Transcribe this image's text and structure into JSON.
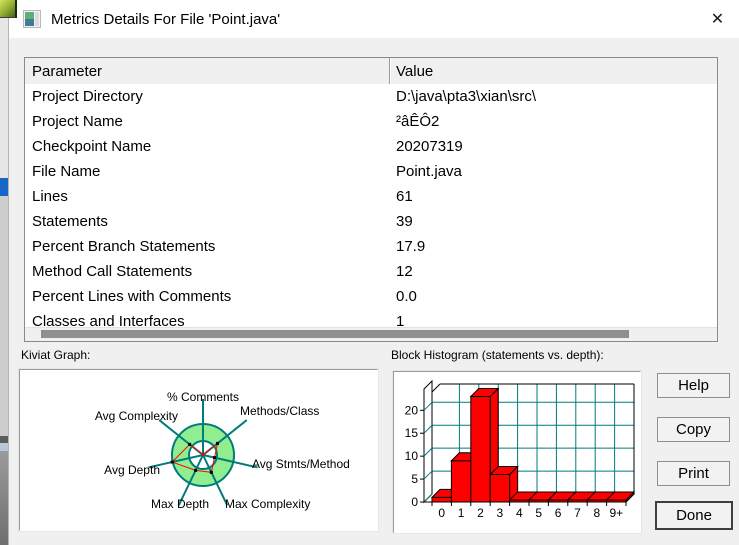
{
  "window": {
    "title": "Metrics Details For File 'Point.java'",
    "close_glyph": "✕"
  },
  "table": {
    "headers": [
      "Parameter",
      "Value"
    ],
    "rows": [
      [
        "Project Directory",
        "D:\\java\\pta3\\xian\\src\\"
      ],
      [
        "Project Name",
        "²âÊÔ2"
      ],
      [
        "Checkpoint Name",
        "20207319"
      ],
      [
        "File Name",
        "Point.java"
      ],
      [
        "Lines",
        "61"
      ],
      [
        "Statements",
        "39"
      ],
      [
        "Percent Branch Statements",
        "17.9"
      ],
      [
        "Method Call Statements",
        "12"
      ],
      [
        "Percent Lines with Comments",
        "0.0"
      ],
      [
        "Classes and Interfaces",
        "1"
      ]
    ]
  },
  "chart_data": [
    {
      "type": "bar",
      "title": "Block Histogram (statements vs. depth):",
      "categories": [
        "0",
        "1",
        "2",
        "3",
        "4",
        "5",
        "6",
        "7",
        "8",
        "9+"
      ],
      "values": [
        1,
        9,
        23,
        6,
        0,
        0,
        0,
        0,
        0,
        0
      ],
      "xlabel": "",
      "ylabel": "",
      "ylim": [
        0,
        24
      ],
      "yticks": [
        0,
        5,
        10,
        15,
        20
      ],
      "grid": true,
      "bar_color": "#ff0000",
      "grid_color": "#007b7b",
      "outline_color": "#000000"
    },
    {
      "type": "radar",
      "title": "Kiviat Graph:",
      "axes": [
        "% Comments",
        "Methods/Class",
        "Avg Stmts/Method",
        "Max Complexity",
        "Max Depth",
        "Avg Depth",
        "Avg Complexity"
      ],
      "values_normalized": [
        0.02,
        0.6,
        0.38,
        0.62,
        0.55,
        1.02,
        0.55
      ],
      "ring_inner_ratio": 0.45,
      "ring_color": "#90ee90",
      "spoke_color": "#007b7b",
      "line_color": "#ff0000",
      "marker_color": "#000000"
    }
  ],
  "buttons": [
    {
      "label": "Help"
    },
    {
      "label": "Copy"
    },
    {
      "label": "Print"
    },
    {
      "label": "Done"
    }
  ],
  "colors": {
    "accent_blue": "#1766c5",
    "teal": "#007b7b",
    "red": "#ff0000",
    "ring_green": "#90ee90"
  }
}
